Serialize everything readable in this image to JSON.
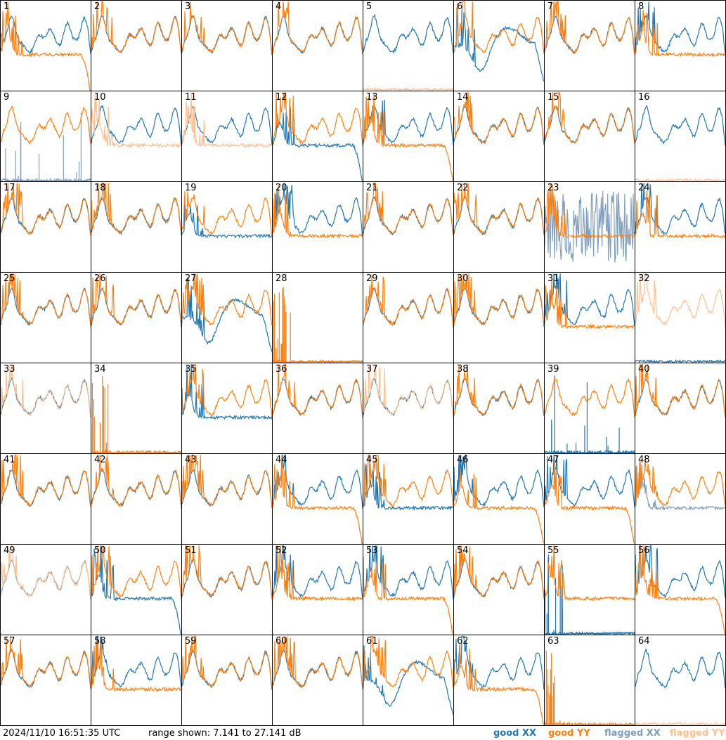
{
  "chart_data": {
    "type": "line",
    "grid": {
      "rows": 8,
      "cols": 8
    },
    "panels": [
      {
        "label": "1",
        "xx": "good",
        "yy": "good",
        "pattern": "xx_high_yy_drop"
      },
      {
        "label": "2",
        "xx": "good",
        "yy": "good",
        "pattern": "normal"
      },
      {
        "label": "3",
        "xx": "good",
        "yy": "good",
        "pattern": "normal"
      },
      {
        "label": "4",
        "xx": "good",
        "yy": "good",
        "pattern": "normal"
      },
      {
        "label": "5",
        "xx": "good",
        "yy": "flagged",
        "pattern": "yy_dead"
      },
      {
        "label": "6",
        "xx": "good",
        "yy": "good",
        "pattern": "xx_dip_yy_spiky"
      },
      {
        "label": "7",
        "xx": "good",
        "yy": "good",
        "pattern": "normal"
      },
      {
        "label": "8",
        "xx": "good",
        "yy": "good",
        "pattern": "yy_spiky_shelf"
      },
      {
        "label": "9",
        "xx": "flagged",
        "yy": "good",
        "pattern": "xx_dead"
      },
      {
        "label": "10",
        "xx": "good",
        "yy": "flagged",
        "pattern": "yy_low"
      },
      {
        "label": "11",
        "xx": "good",
        "yy": "flagged",
        "pattern": "yy_low"
      },
      {
        "label": "12",
        "xx": "good",
        "yy": "good",
        "pattern": "xx_low_rolloff"
      },
      {
        "label": "13",
        "xx": "good",
        "yy": "good",
        "pattern": "yy_low_rolloff"
      },
      {
        "label": "14",
        "xx": "good",
        "yy": "good",
        "pattern": "normal"
      },
      {
        "label": "15",
        "xx": "good",
        "yy": "good",
        "pattern": "normal"
      },
      {
        "label": "16",
        "xx": "good",
        "yy": "flagged",
        "pattern": "yy_dead"
      },
      {
        "label": "17",
        "xx": "good",
        "yy": "good",
        "pattern": "normal"
      },
      {
        "label": "18",
        "xx": "good",
        "yy": "good",
        "pattern": "normal"
      },
      {
        "label": "19",
        "xx": "good",
        "yy": "good",
        "pattern": "xx_low"
      },
      {
        "label": "20",
        "xx": "good",
        "yy": "good",
        "pattern": "yy_low_shelf"
      },
      {
        "label": "21",
        "xx": "good",
        "yy": "good",
        "pattern": "normal"
      },
      {
        "label": "22",
        "xx": "good",
        "yy": "good",
        "pattern": "normal"
      },
      {
        "label": "23",
        "xx": "flagged",
        "yy": "good",
        "pattern": "xx_noise"
      },
      {
        "label": "24",
        "xx": "good",
        "yy": "good",
        "pattern": "yy_low_shelf"
      },
      {
        "label": "25",
        "xx": "good",
        "yy": "good",
        "pattern": "normal"
      },
      {
        "label": "26",
        "xx": "good",
        "yy": "good",
        "pattern": "normal"
      },
      {
        "label": "27",
        "xx": "good",
        "yy": "good",
        "pattern": "xx_dip_yy_spiky"
      },
      {
        "label": "28",
        "xx": "good",
        "yy": "good",
        "pattern": "yy_dead_spikes"
      },
      {
        "label": "29",
        "xx": "good",
        "yy": "good",
        "pattern": "normal"
      },
      {
        "label": "30",
        "xx": "good",
        "yy": "good",
        "pattern": "normal"
      },
      {
        "label": "31",
        "xx": "good",
        "yy": "good",
        "pattern": "yy_low_shelf"
      },
      {
        "label": "32",
        "xx": "good",
        "yy": "flagged",
        "pattern": "xx_dead_yyflag"
      },
      {
        "label": "33",
        "xx": "good",
        "yy": "flagged",
        "pattern": "normal"
      },
      {
        "label": "34",
        "xx": "good",
        "yy": "good",
        "pattern": "yy_dead_spikes"
      },
      {
        "label": "35",
        "xx": "good",
        "yy": "good",
        "pattern": "xx_low"
      },
      {
        "label": "36",
        "xx": "good",
        "yy": "good",
        "pattern": "normal"
      },
      {
        "label": "37",
        "xx": "good",
        "yy": "flagged",
        "pattern": "normal"
      },
      {
        "label": "38",
        "xx": "good",
        "yy": "good",
        "pattern": "normal"
      },
      {
        "label": "39",
        "xx": "good",
        "yy": "good",
        "pattern": "xx_dead"
      },
      {
        "label": "40",
        "xx": "good",
        "yy": "good",
        "pattern": "normal"
      },
      {
        "label": "41",
        "xx": "good",
        "yy": "good",
        "pattern": "normal"
      },
      {
        "label": "42",
        "xx": "good",
        "yy": "good",
        "pattern": "normal"
      },
      {
        "label": "43",
        "xx": "good",
        "yy": "good",
        "pattern": "normal"
      },
      {
        "label": "44",
        "xx": "good",
        "yy": "good",
        "pattern": "yy_low_rolloff"
      },
      {
        "label": "45",
        "xx": "good",
        "yy": "good",
        "pattern": "xx_low"
      },
      {
        "label": "46",
        "xx": "good",
        "yy": "good",
        "pattern": "yy_low_rolloff"
      },
      {
        "label": "47",
        "xx": "good",
        "yy": "good",
        "pattern": "yy_low_rolloff"
      },
      {
        "label": "48",
        "xx": "flagged",
        "yy": "good",
        "pattern": "xx_low"
      },
      {
        "label": "49",
        "xx": "flagged",
        "yy": "flagged",
        "pattern": "normal"
      },
      {
        "label": "50",
        "xx": "good",
        "yy": "good",
        "pattern": "xx_low_rolloff"
      },
      {
        "label": "51",
        "xx": "good",
        "yy": "good",
        "pattern": "normal"
      },
      {
        "label": "52",
        "xx": "good",
        "yy": "good",
        "pattern": "yy_low_shelf"
      },
      {
        "label": "53",
        "xx": "good",
        "yy": "good",
        "pattern": "yy_low_rolloff"
      },
      {
        "label": "54",
        "xx": "good",
        "yy": "good",
        "pattern": "normal"
      },
      {
        "label": "55",
        "xx": "good",
        "yy": "good",
        "pattern": "xx_dead_spikes"
      },
      {
        "label": "56",
        "xx": "good",
        "yy": "good",
        "pattern": "yy_low_rolloff"
      },
      {
        "label": "57",
        "xx": "good",
        "yy": "good",
        "pattern": "normal"
      },
      {
        "label": "58",
        "xx": "good",
        "yy": "good",
        "pattern": "yy_low_shelf"
      },
      {
        "label": "59",
        "xx": "good",
        "yy": "good",
        "pattern": "normal"
      },
      {
        "label": "60",
        "xx": "good",
        "yy": "good",
        "pattern": "normal"
      },
      {
        "label": "61",
        "xx": "good",
        "yy": "good",
        "pattern": "xx_dip_yy_spiky"
      },
      {
        "label": "62",
        "xx": "good",
        "yy": "good",
        "pattern": "yy_low_rolloff"
      },
      {
        "label": "63",
        "xx": "good",
        "yy": "good",
        "pattern": "yy_dead_spikes"
      },
      {
        "label": "64",
        "xx": "good",
        "yy": "flagged",
        "pattern": "yy_dead"
      }
    ],
    "legend": [
      {
        "label": "good XX",
        "color": "#1f77b4"
      },
      {
        "label": "good YY",
        "color": "#ff7f0e"
      },
      {
        "label": "flagged XX",
        "color": "#7f9fbf"
      },
      {
        "label": "flagged YY",
        "color": "#ffbf8f"
      }
    ],
    "legend_position": "bottom-right",
    "timestamp": "2024/11/10 16:51:35 UTC",
    "range_text": "range shown: 7.141 to 27.141 dB",
    "ylim": [
      7.141,
      27.141
    ]
  }
}
